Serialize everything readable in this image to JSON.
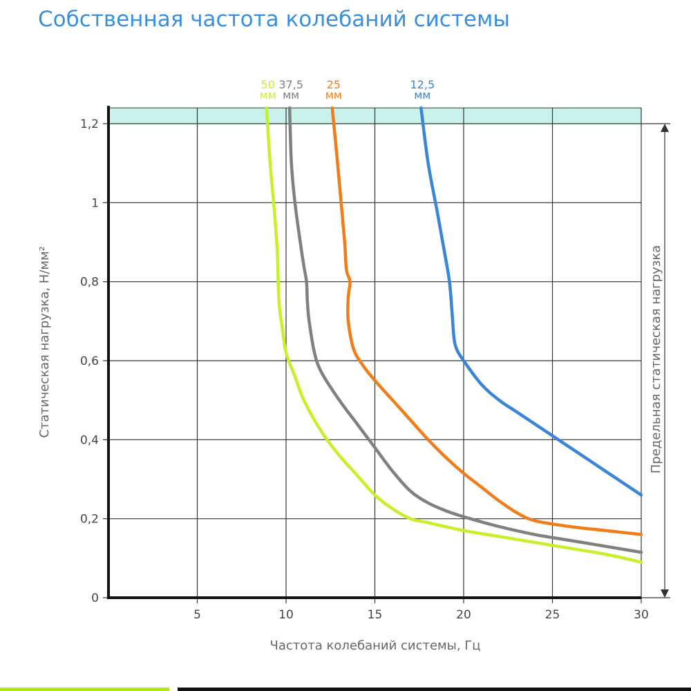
{
  "chart_data": {
    "type": "line",
    "title": "Собственная частота колебаний системы",
    "xlabel": "Частота колебаний системы, Гц",
    "ylabel": "Статическая нагрузка, Н/мм²",
    "limit_label": "Предельная статическая нагрузка",
    "xlim": [
      0,
      30
    ],
    "ylim": [
      0,
      1.2
    ],
    "x_ticks": [
      5,
      10,
      15,
      20,
      25,
      30
    ],
    "x_tick_labels": [
      "5",
      "10",
      "15",
      "20",
      "25",
      "30"
    ],
    "y_ticks": [
      0,
      0.2,
      0.4,
      0.6,
      0.8,
      1,
      1.2
    ],
    "y_tick_labels": [
      "0",
      "0,2",
      "0,4",
      "0,6",
      "0,8",
      "1",
      "1,2"
    ],
    "grid": true,
    "limit_band": [
      1.2,
      1.24
    ],
    "series": [
      {
        "name": "50",
        "unit": "мм",
        "color": "#c8f02a",
        "x": [
          8.9,
          9.1,
          9.3,
          9.5,
          9.6,
          9.8,
          10.0,
          10.5,
          11.0,
          12.0,
          13.0,
          14.0,
          15.0,
          16.0,
          17.0,
          18.0,
          20.0,
          22.0,
          24.0,
          26.0,
          28.0,
          30.0
        ],
        "y": [
          1.24,
          1.1,
          1.0,
          0.88,
          0.75,
          0.68,
          0.62,
          0.56,
          0.5,
          0.42,
          0.36,
          0.31,
          0.26,
          0.225,
          0.2,
          0.19,
          0.17,
          0.155,
          0.14,
          0.125,
          0.11,
          0.09
        ]
      },
      {
        "name": "37,5",
        "unit": "мм",
        "color": "#808080",
        "x": [
          10.2,
          10.3,
          10.5,
          10.8,
          11.0,
          11.15,
          11.2,
          11.3,
          11.6,
          12.0,
          13.0,
          14.0,
          15.0,
          16.0,
          17.0,
          18.0,
          19.0,
          20.0,
          22.0,
          24.0,
          26.0,
          28.0,
          30.0
        ],
        "y": [
          1.24,
          1.1,
          1.0,
          0.9,
          0.84,
          0.8,
          0.75,
          0.7,
          0.62,
          0.57,
          0.5,
          0.44,
          0.38,
          0.32,
          0.27,
          0.24,
          0.22,
          0.205,
          0.18,
          0.16,
          0.145,
          0.13,
          0.115
        ]
      },
      {
        "name": "25",
        "unit": "мм",
        "color": "#f07d1a",
        "x": [
          12.6,
          12.9,
          13.1,
          13.3,
          13.4,
          13.6,
          13.5,
          13.5,
          13.8,
          14.3,
          15.0,
          16.0,
          17.0,
          18.0,
          19.0,
          20.0,
          21.0,
          22.0,
          23.0,
          24.0,
          26.0,
          28.0,
          30.0
        ],
        "y": [
          1.24,
          1.1,
          1.0,
          0.9,
          0.83,
          0.8,
          0.76,
          0.7,
          0.63,
          0.59,
          0.55,
          0.5,
          0.45,
          0.4,
          0.355,
          0.315,
          0.28,
          0.245,
          0.215,
          0.195,
          0.18,
          0.17,
          0.16
        ]
      },
      {
        "name": "12,5",
        "unit": "мм",
        "color": "#3a85d8",
        "x": [
          17.6,
          18.0,
          18.5,
          18.9,
          19.2,
          19.35,
          19.45,
          19.6,
          20.0,
          21.0,
          22.0,
          23.0,
          24.0,
          25.0,
          26.0,
          27.0,
          28.0,
          29.0,
          30.0
        ],
        "y": [
          1.24,
          1.1,
          0.98,
          0.88,
          0.8,
          0.72,
          0.66,
          0.63,
          0.6,
          0.54,
          0.5,
          0.47,
          0.44,
          0.41,
          0.38,
          0.35,
          0.32,
          0.29,
          0.26
        ]
      }
    ]
  }
}
